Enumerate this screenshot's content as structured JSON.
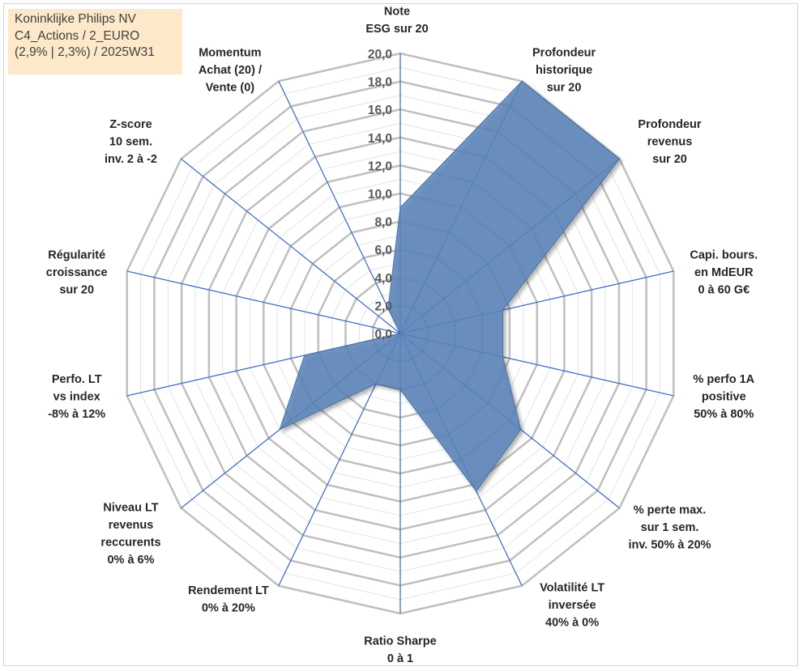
{
  "chart_data": {
    "type": "radar",
    "title": [
      "Koninklijke Philips NV",
      "C4_Actions / 2_EURO",
      "(2,9% | 2,3%) / 2025W31"
    ],
    "rmin": 0,
    "rmax": 20,
    "tick_step": 2,
    "tick_labels": [
      "0,0",
      "2,0",
      "4,0",
      "6,0",
      "8,0",
      "10,0",
      "12,0",
      "14,0",
      "16,0",
      "18,0",
      "20,0"
    ],
    "series_color": "#5b84b9",
    "axes": [
      {
        "label": [
          "Note",
          "ESG sur 20"
        ],
        "value": 9.0
      },
      {
        "label": [
          "Profondeur",
          "historique",
          "sur 20"
        ],
        "value": 20.0
      },
      {
        "label": [
          "Profondeur",
          "revenus",
          "sur 20"
        ],
        "value": 20.0
      },
      {
        "label": [
          "Capi. bours.",
          "en MdEUR",
          "0 à 60 G€"
        ],
        "value": 7.5
      },
      {
        "label": [
          "% perfo 1A",
          "positive",
          "50% à 80%"
        ],
        "value": 7.5
      },
      {
        "label": [
          "% perte max.",
          "sur 1 sem.",
          "inv. 50% à 20%"
        ],
        "value": 11.0
      },
      {
        "label": [
          "Volatilité LT",
          "inversée",
          "40% à 0%"
        ],
        "value": 12.5
      },
      {
        "label": [
          "Ratio Sharpe",
          "0 à 1"
        ],
        "value": 4.0
      },
      {
        "label": [
          "Rendement LT",
          "0% à 20%"
        ],
        "value": 4.0
      },
      {
        "label": [
          "Niveau LT",
          "revenus",
          "reccurents",
          "0% à 6%"
        ],
        "value": 11.0
      },
      {
        "label": [
          "Perfo. LT",
          "vs index",
          "-8% à 12%"
        ],
        "value": 7.0
      },
      {
        "label": [
          "Régularité",
          "croissance",
          "sur 20"
        ],
        "value": 0.0
      },
      {
        "label": [
          "Z-score",
          "10 sem.",
          "inv. 2 à -2"
        ],
        "value": 0.0
      },
      {
        "label": [
          "Momentum",
          "Achat (20) /",
          "Vente (0)"
        ],
        "value": 2.0
      }
    ]
  }
}
